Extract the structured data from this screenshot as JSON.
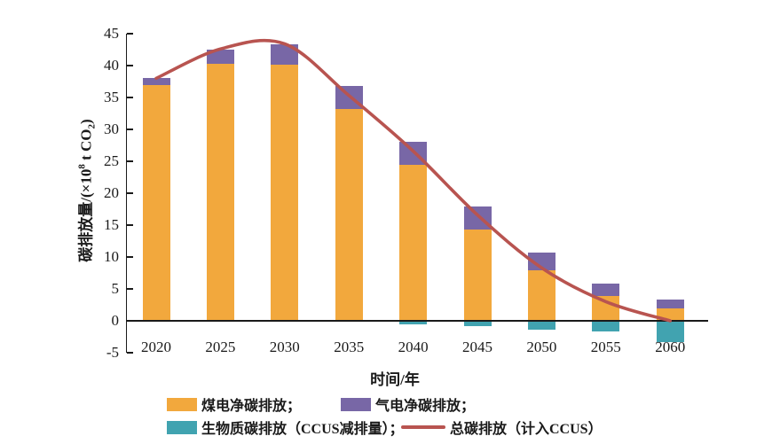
{
  "figure": {
    "ylabel_parts": {
      "prefix": "碳排放量/(×10",
      "sup": "8",
      "mid": " t CO",
      "sub": "2",
      "suffix": ")"
    }
  },
  "chart_data": {
    "type": "bar",
    "stacked": true,
    "title": "",
    "xlabel": "时间/年",
    "ylabel": "碳排放量/(×10⁸ t CO₂)",
    "ylim": [
      -5,
      45
    ],
    "yticks": [
      45,
      40,
      35,
      30,
      25,
      20,
      15,
      10,
      5,
      0,
      -5
    ],
    "grid": false,
    "legend_position": "bottom",
    "categories": [
      "2020",
      "2025",
      "2030",
      "2035",
      "2040",
      "2045",
      "2050",
      "2055",
      "2060"
    ],
    "series": [
      {
        "key": "coal-net",
        "name": "煤电净碳排放",
        "color": "#F2A83D",
        "values": [
          37.0,
          40.3,
          40.2,
          33.2,
          24.5,
          14.3,
          7.9,
          3.9,
          2.0
        ]
      },
      {
        "key": "gas-net",
        "name": "气电净碳排放",
        "color": "#7867A6",
        "values": [
          1.0,
          2.2,
          3.1,
          3.6,
          3.6,
          3.6,
          2.8,
          1.9,
          1.4
        ]
      },
      {
        "key": "biomass-ccus",
        "name": "生物质碳排放（CCUS减排量）",
        "color": "#41A3B0",
        "values": [
          0,
          0,
          0,
          0,
          -0.6,
          -0.9,
          -1.4,
          -1.6,
          -3.3
        ]
      }
    ],
    "line_series": {
      "key": "total-with-ccus",
      "name": "总碳排放（计入CCUS）",
      "color": "#B85450",
      "values": [
        38.0,
        42.6,
        43.4,
        35.3,
        26.6,
        16.6,
        8.3,
        3.0,
        0.0
      ]
    }
  },
  "legend": {
    "items": [
      {
        "label": "煤电净碳排放；",
        "type": "box",
        "color": "#F2A83D"
      },
      {
        "label": "气电净碳排放；",
        "type": "box",
        "color": "#7867A6"
      },
      {
        "label": "生物质碳排放（CCUS减排量）；",
        "type": "box",
        "color": "#41A3B0"
      },
      {
        "label": "总碳排放（计入CCUS）",
        "type": "line",
        "color": "#B85450"
      }
    ]
  }
}
